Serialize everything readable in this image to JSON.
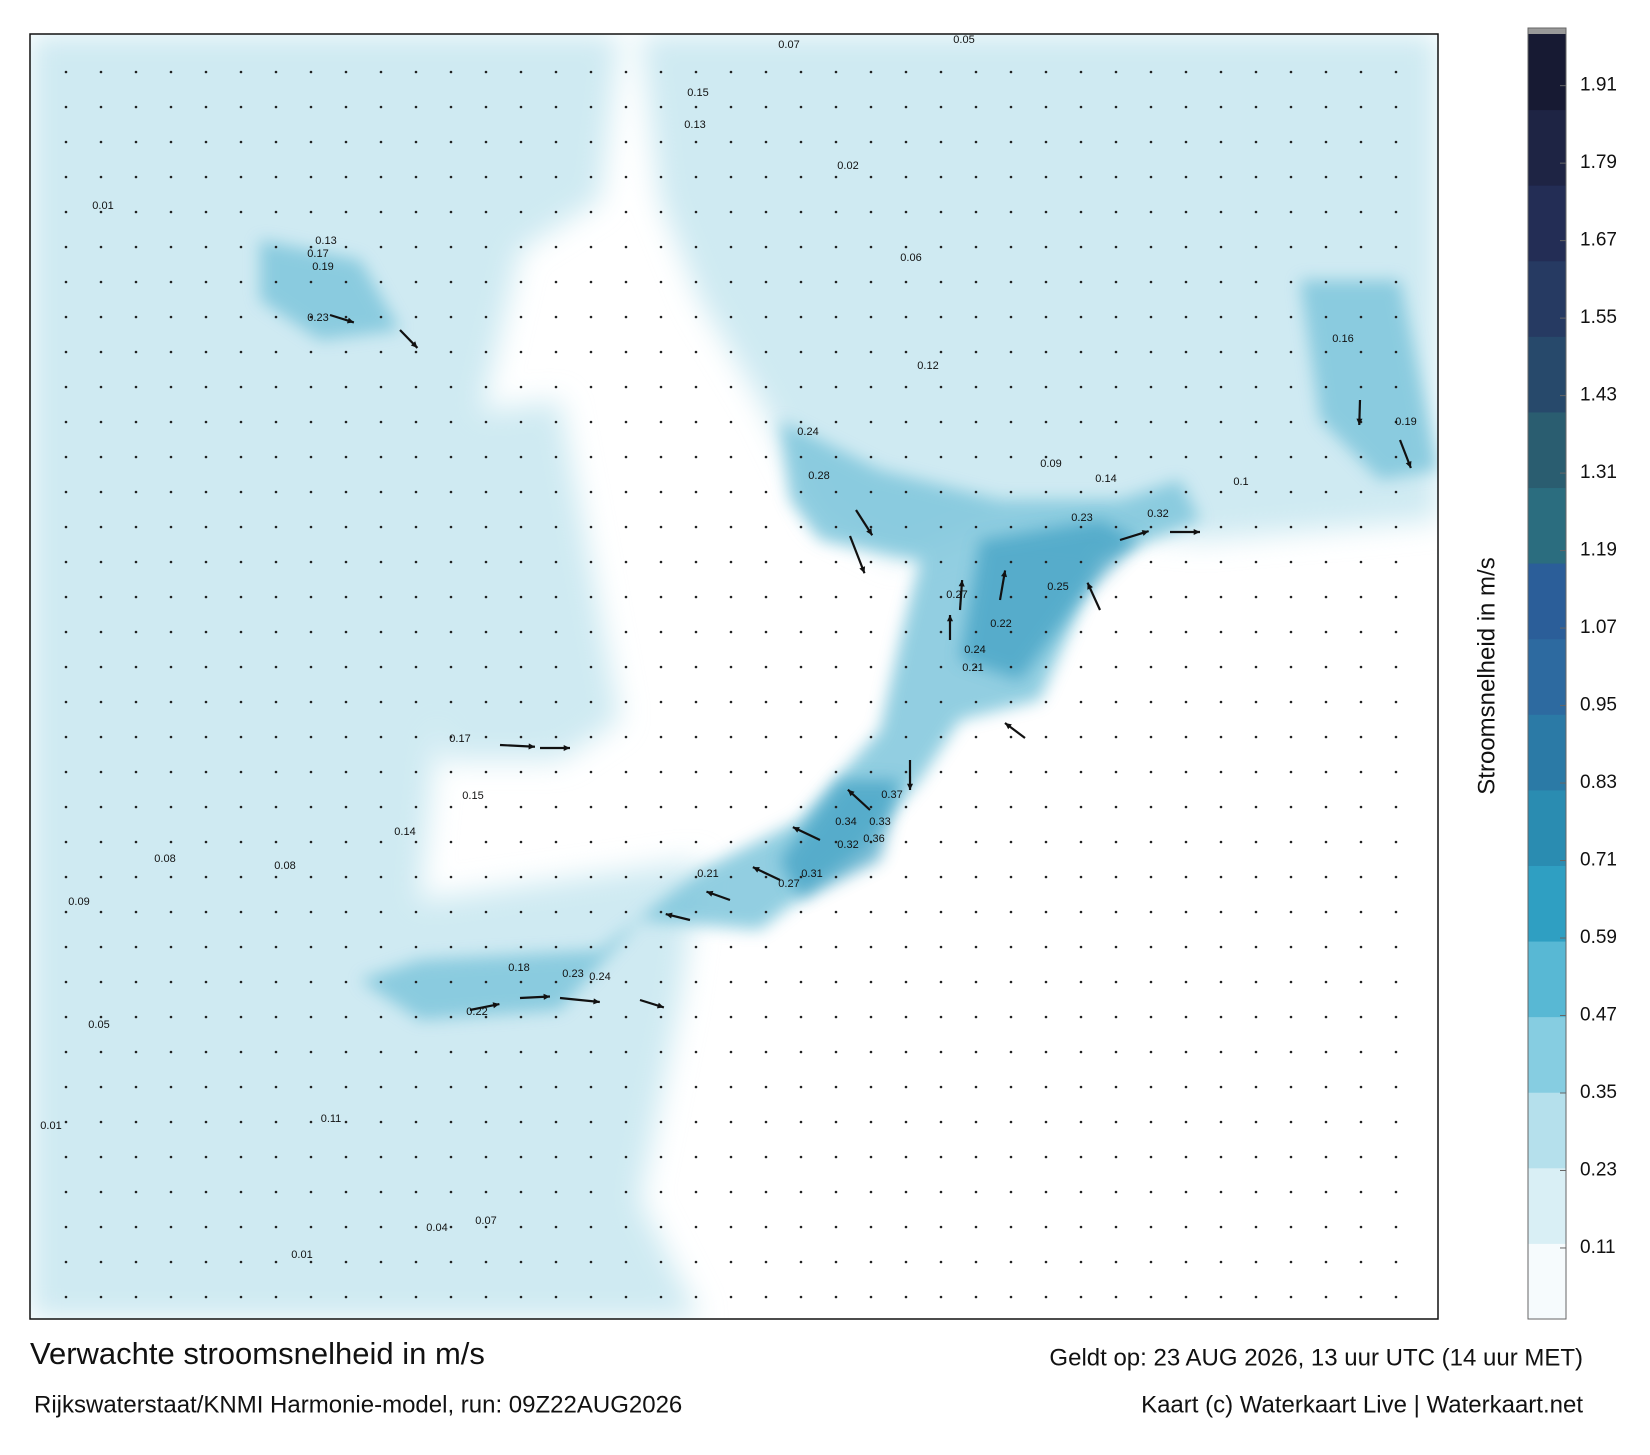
{
  "chart_data": {
    "type": "map",
    "title": "Verwachte stroomsnelheid in m/s",
    "valid_time": "Geldt op: 23 AUG 2026, 13 uur UTC (14 uur MET)",
    "source": "Rijkswaterstaat/KNMI Harmonie-model, run: 09Z22AUG2026",
    "credit": "Kaart (c) Waterkaart Live | Waterkaart.net",
    "colorbar": {
      "label": "Stroomsnelheid in m/s",
      "clim": [
        0,
        1.99
      ],
      "ticks": [
        0.11,
        0.23,
        0.35,
        0.47,
        0.59,
        0.71,
        0.83,
        0.95,
        1.07,
        1.19,
        1.31,
        1.43,
        1.55,
        1.67,
        1.79,
        1.91
      ],
      "colors": [
        "#f6fbfd",
        "#d9eff5",
        "#b5e0ec",
        "#86cde1",
        "#58b8d4",
        "#2f9fc2",
        "#2a8cb1",
        "#2b7aa6",
        "#2d6aa0",
        "#2b5e99",
        "#2b6d7f",
        "#2a5d70",
        "#27496b",
        "#263a62",
        "#232d55",
        "#1e2444",
        "#171a33"
      ]
    },
    "labels": [
      0.23,
      0.19,
      0.17,
      0.13,
      0.15,
      0.13,
      0.28,
      0.24,
      0.32,
      0.23,
      0.27,
      0.25,
      0.22,
      0.24,
      0.21,
      0.37,
      0.34,
      0.33,
      0.36,
      0.32,
      0.31,
      0.27,
      0.21,
      0.23,
      0.24,
      0.18,
      0.22,
      0.14,
      0.17,
      0.15,
      0.11,
      0.07,
      0.05,
      0.01,
      0.08,
      0.09,
      0.01,
      0.01,
      0.04,
      0.07,
      0.16,
      0.19,
      0.14,
      0.06,
      0.12,
      0.02,
      0.09,
      0.1,
      0.08,
      0.05
    ]
  }
}
